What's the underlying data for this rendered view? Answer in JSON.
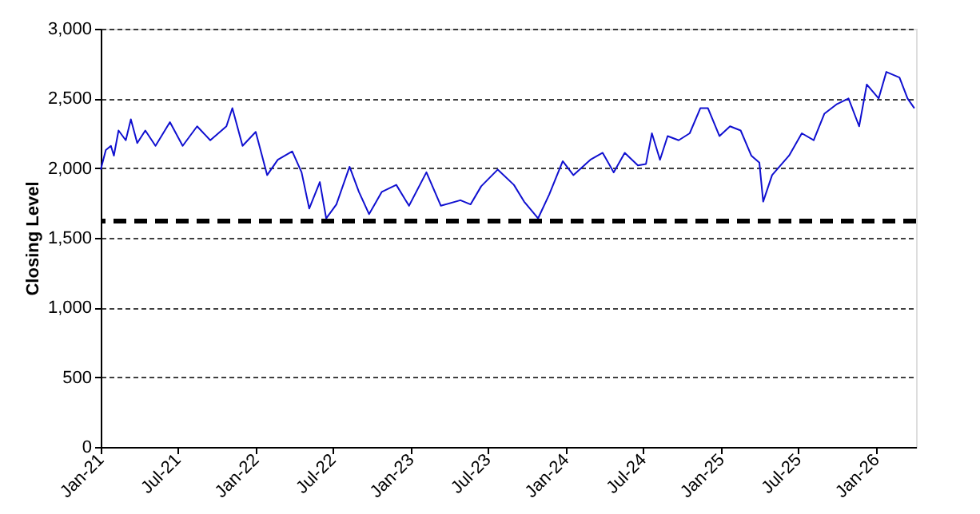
{
  "chart_data": {
    "type": "line",
    "ylabel": "Closing Level",
    "x": [
      "2021-01-01",
      "2021-01-13",
      "2021-01-25",
      "2021-02-01",
      "2021-02-12",
      "2021-03-01",
      "2021-03-13",
      "2021-03-28",
      "2021-04-16",
      "2021-05-10",
      "2021-06-13",
      "2021-07-13",
      "2021-08-16",
      "2021-09-16",
      "2021-10-24",
      "2021-11-07",
      "2021-12-01",
      "2022-01-01",
      "2022-01-28",
      "2022-02-22",
      "2022-03-28",
      "2022-04-19",
      "2022-05-07",
      "2022-06-01",
      "2022-06-16",
      "2022-07-10",
      "2022-08-10",
      "2022-09-01",
      "2022-09-25",
      "2022-10-25",
      "2022-11-28",
      "2022-12-28",
      "2023-02-07",
      "2023-03-13",
      "2023-04-28",
      "2023-05-22",
      "2023-06-16",
      "2023-07-25",
      "2023-09-01",
      "2023-09-25",
      "2023-10-28",
      "2023-11-23",
      "2023-12-25",
      "2024-01-19",
      "2024-02-28",
      "2024-03-28",
      "2024-04-23",
      "2024-05-19",
      "2024-06-19",
      "2024-07-08",
      "2024-07-22",
      "2024-08-10",
      "2024-08-28",
      "2024-09-23",
      "2024-10-19",
      "2024-11-13",
      "2024-12-01",
      "2024-12-28",
      "2025-01-22",
      "2025-02-16",
      "2025-03-13",
      "2025-04-01",
      "2025-04-10",
      "2025-05-01",
      "2025-06-10",
      "2025-07-10",
      "2025-08-07",
      "2025-09-01",
      "2025-10-01",
      "2025-10-28",
      "2025-11-22",
      "2025-12-10",
      "2026-01-07",
      "2026-01-25",
      "2026-02-25",
      "2026-03-16",
      "2026-04-01"
    ],
    "series": [
      {
        "color": "#1010d0",
        "values": [
          1990,
          2130,
          2160,
          2090,
          2270,
          2200,
          2350,
          2180,
          2270,
          2160,
          2330,
          2160,
          2300,
          2200,
          2300,
          2430,
          2160,
          2260,
          1950,
          2060,
          2120,
          1970,
          1710,
          1900,
          1640,
          1740,
          2010,
          1830,
          1670,
          1830,
          1880,
          1730,
          1970,
          1730,
          1770,
          1740,
          1870,
          1990,
          1880,
          1760,
          1640,
          1810,
          2050,
          1950,
          2060,
          2110,
          1970,
          2110,
          2020,
          2030,
          2250,
          2060,
          2230,
          2200,
          2250,
          2430,
          2430,
          2230,
          2300,
          2270,
          2090,
          2040,
          1760,
          1950,
          2090,
          2250,
          2200,
          2390,
          2460,
          2500,
          2300,
          2600,
          2500,
          2690,
          2650,
          2500,
          2430
        ]
      }
    ],
    "xlim": [
      "2021-01-01",
      "2026-04-05"
    ],
    "xticks": [
      {
        "value": "2021-01",
        "label": "Jan-21"
      },
      {
        "value": "2021-07",
        "label": "Jul-21"
      },
      {
        "value": "2022-01",
        "label": "Jan-22"
      },
      {
        "value": "2022-07",
        "label": "Jul-22"
      },
      {
        "value": "2023-01",
        "label": "Jan-23"
      },
      {
        "value": "2023-07",
        "label": "Jul-23"
      },
      {
        "value": "2024-01",
        "label": "Jan-24"
      },
      {
        "value": "2024-07",
        "label": "Jul-24"
      },
      {
        "value": "2025-01",
        "label": "Jan-25"
      },
      {
        "value": "2025-07",
        "label": "Jul-25"
      },
      {
        "value": "2026-01",
        "label": "Jan-26"
      }
    ],
    "ylim": [
      0,
      3000
    ],
    "yticks": [
      0,
      500,
      {
        "value": 1000,
        "label": "1,000"
      },
      {
        "value": 1500,
        "label": "1,500"
      },
      {
        "value": 2000,
        "label": "2,000"
      },
      {
        "value": 2500,
        "label": "2,500"
      },
      {
        "value": 3000,
        "label": "3,000"
      }
    ],
    "grid": "y",
    "marker": "none",
    "line_style": "solid",
    "ref_lines": [
      {
        "axis": "y",
        "value": 1620,
        "color": "#000000",
        "line_style": "dashed"
      }
    ]
  }
}
